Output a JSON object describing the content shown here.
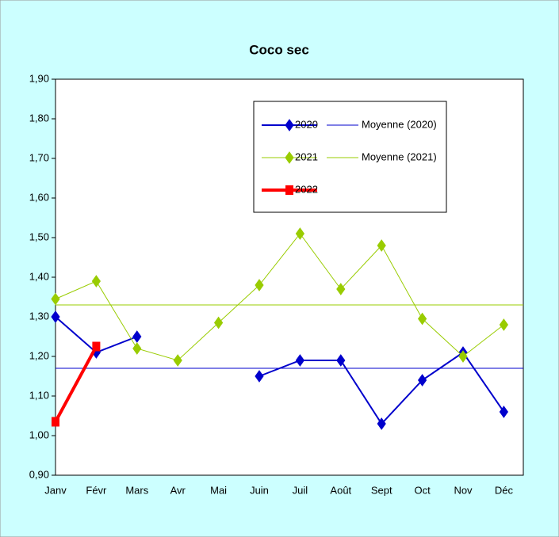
{
  "chart_data": {
    "type": "line",
    "title": "Coco sec",
    "categories": [
      "Janv",
      "Févr",
      "Mars",
      "Avr",
      "Mai",
      "Juin",
      "Juil",
      "Août",
      "Sept",
      "Oct",
      "Nov",
      "Déc"
    ],
    "series": [
      {
        "name": "2020",
        "color": "#0000cc",
        "marker": "diamond",
        "values": [
          1.3,
          1.21,
          1.25,
          null,
          null,
          1.15,
          1.19,
          1.19,
          1.03,
          1.14,
          1.21,
          1.06
        ]
      },
      {
        "name": "2021",
        "color": "#99cc00",
        "marker": "diamond",
        "values": [
          1.345,
          1.39,
          1.22,
          1.19,
          1.285,
          1.38,
          1.51,
          1.37,
          1.48,
          1.295,
          1.2,
          1.28
        ]
      },
      {
        "name": "2022",
        "color": "#ff0000",
        "marker": "square",
        "values": [
          1.035,
          1.225,
          null,
          null,
          null,
          null,
          null,
          null,
          null,
          null,
          null,
          null
        ]
      }
    ],
    "means": [
      {
        "name": "Moyenne (2020)",
        "color": "#0000cc",
        "value": 1.17
      },
      {
        "name": "Moyenne (2021)",
        "color": "#99cc00",
        "value": 1.33
      }
    ],
    "ylim": [
      0.9,
      1.9
    ],
    "yticks": [
      {
        "value": 0.9,
        "label": "0,90"
      },
      {
        "value": 1.0,
        "label": "1,00"
      },
      {
        "value": 1.1,
        "label": "1,10"
      },
      {
        "value": 1.2,
        "label": "1,20"
      },
      {
        "value": 1.3,
        "label": "1,30"
      },
      {
        "value": 1.4,
        "label": "1,40"
      },
      {
        "value": 1.5,
        "label": "1,50"
      },
      {
        "value": 1.6,
        "label": "1,60"
      },
      {
        "value": 1.7,
        "label": "1,70"
      },
      {
        "value": 1.8,
        "label": "1,80"
      },
      {
        "value": 1.9,
        "label": "1,90"
      }
    ],
    "legend": "top-right",
    "grid": false
  }
}
